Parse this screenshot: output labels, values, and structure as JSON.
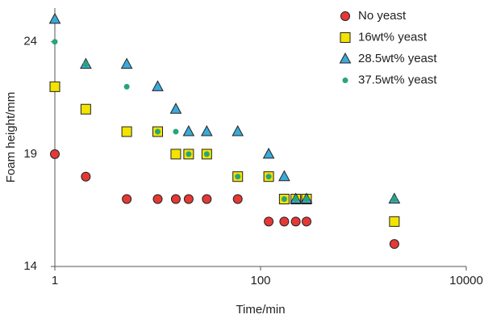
{
  "chart_data": {
    "type": "scatter",
    "x_label": "Time/min",
    "y_label": "Foam height/mm",
    "x": [
      1,
      2,
      5,
      10,
      15,
      20,
      30,
      60,
      120,
      170,
      220,
      280,
      2000
    ],
    "xlog": true,
    "xlim": [
      1,
      10000
    ],
    "xticks": [
      1,
      100,
      10000
    ],
    "ylim": [
      14,
      25.5
    ],
    "yticks": [
      14,
      19,
      24
    ],
    "legend": "top-right",
    "series": [
      {
        "name": "No yeast",
        "color": "#e53935",
        "marker": "circle",
        "values": [
          19,
          18,
          17,
          17,
          17,
          17,
          17,
          17,
          16,
          16,
          16,
          16,
          15
        ]
      },
      {
        "name": "16wt% yeast",
        "color": "#f2e300",
        "marker": "square",
        "values": [
          22,
          21,
          20,
          20,
          19,
          19,
          19,
          18,
          18,
          17,
          17,
          17,
          16
        ]
      },
      {
        "name": "28.5wt% yeast",
        "color": "#3ba9d9",
        "marker": "triangle",
        "values": [
          25,
          23,
          23,
          22,
          21,
          20,
          20,
          20,
          19,
          18,
          17,
          17,
          17
        ]
      },
      {
        "name": "37.5wt% yeast",
        "color": "#27a57a",
        "marker": "dot",
        "values": [
          24,
          23,
          22,
          20,
          20,
          19,
          19,
          18,
          18,
          17,
          17,
          17,
          17
        ]
      }
    ]
  }
}
